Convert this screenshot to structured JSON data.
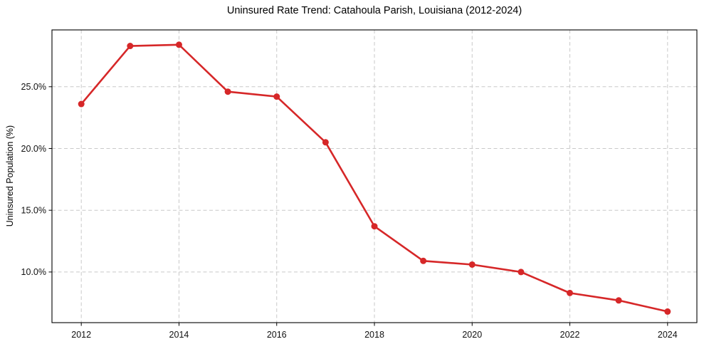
{
  "chart_data": {
    "type": "line",
    "title": "Uninsured Rate Trend: Catahoula Parish, Louisiana (2012-2024)",
    "xlabel": "",
    "ylabel": "Uninsured Population (%)",
    "x": [
      2012,
      2013,
      2014,
      2015,
      2016,
      2017,
      2018,
      2019,
      2020,
      2021,
      2022,
      2023,
      2024
    ],
    "values": [
      23.6,
      28.3,
      28.4,
      24.6,
      24.2,
      20.5,
      13.7,
      10.9,
      10.6,
      10.0,
      8.3,
      7.7,
      6.8
    ],
    "xlim": [
      2011.4,
      2024.6
    ],
    "ylim": [
      5.9,
      29.6
    ],
    "xticks": [
      2012,
      2014,
      2016,
      2018,
      2020,
      2022,
      2024
    ],
    "xtick_labels": [
      "2012",
      "2014",
      "2016",
      "2018",
      "2020",
      "2022",
      "2024"
    ],
    "yticks": [
      10,
      15,
      20,
      25
    ],
    "ytick_labels": [
      "10.0%",
      "15.0%",
      "20.0%",
      "25.0%"
    ],
    "grid": true,
    "legend_position": "none",
    "marker": "circle",
    "line_color": "#d62728",
    "grid_color": "#c9c9c9",
    "frame_color": "#000000",
    "background_color": "#ffffff",
    "text_color": "#000000"
  }
}
